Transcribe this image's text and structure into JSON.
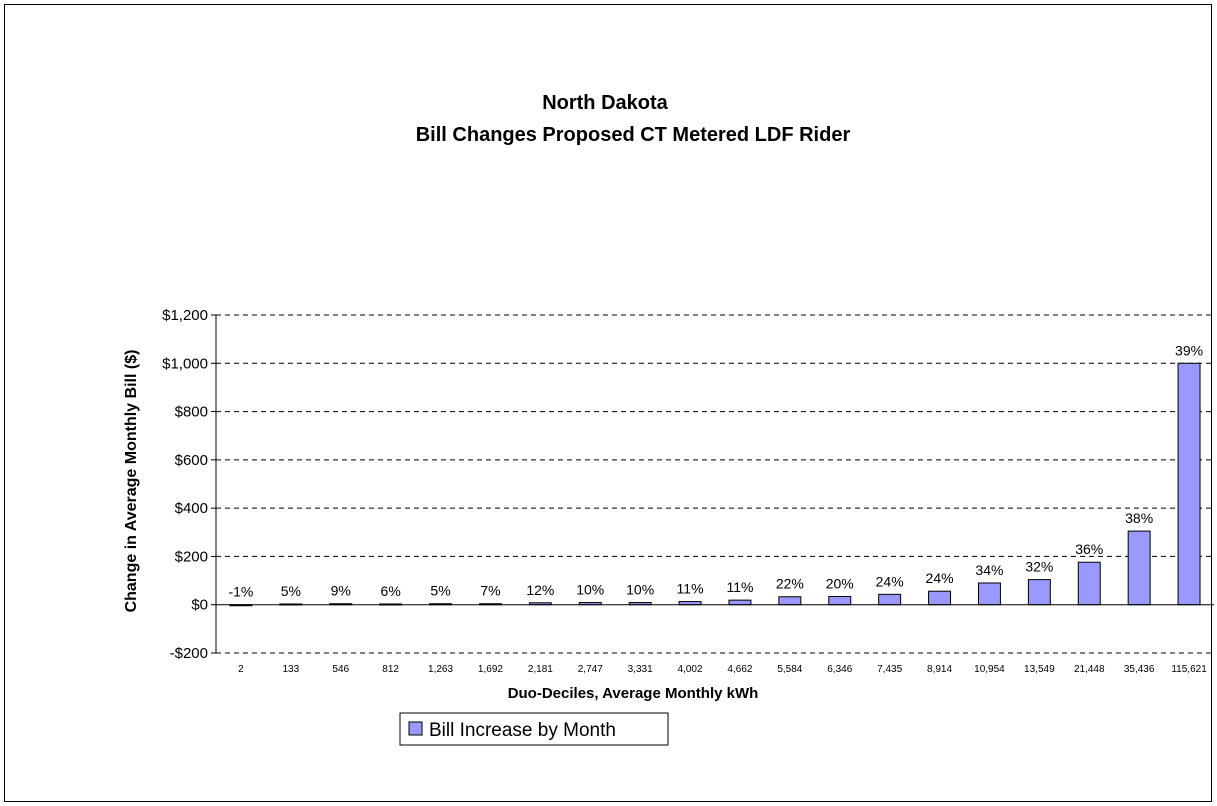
{
  "chart_data": {
    "type": "bar",
    "title": "North Dakota",
    "subtitle": "Bill Changes Proposed CT Metered LDF Rider",
    "xlabel": "Duo-Deciles, Average Monthly kWh",
    "ylabel": "Change in Average Monthly Bill  ($)",
    "ylim": [
      -200,
      1200
    ],
    "yticks": [
      -200,
      0,
      200,
      400,
      600,
      800,
      1000,
      1200
    ],
    "ytick_labels": [
      "-$200",
      "$0",
      "$200",
      "$400",
      "$600",
      "$800",
      "$1,000",
      "$1,200"
    ],
    "grid": true,
    "legend_position": "bottom-center",
    "bar_color": "#9999ff",
    "categories": [
      "2",
      "133",
      "546",
      "812",
      "1,263",
      "1,692",
      "2,181",
      "2,747",
      "3,331",
      "4,002",
      "4,662",
      "5,584",
      "6,346",
      "7,435",
      "8,914",
      "10,954",
      "13,549",
      "21,448",
      "35,436",
      "115,621"
    ],
    "series": [
      {
        "name": "Bill Increase by Month",
        "values": [
          0,
          3,
          4,
          3,
          4,
          4,
          8,
          9,
          9,
          13,
          19,
          33,
          34,
          43,
          56,
          90,
          104,
          176,
          305,
          1000
        ],
        "data_labels": [
          "-1%",
          "5%",
          "9%",
          "6%",
          "5%",
          "7%",
          "12%",
          "10%",
          "10%",
          "11%",
          "11%",
          "22%",
          "20%",
          "24%",
          "24%",
          "34%",
          "32%",
          "36%",
          "38%",
          "39%"
        ]
      }
    ]
  }
}
